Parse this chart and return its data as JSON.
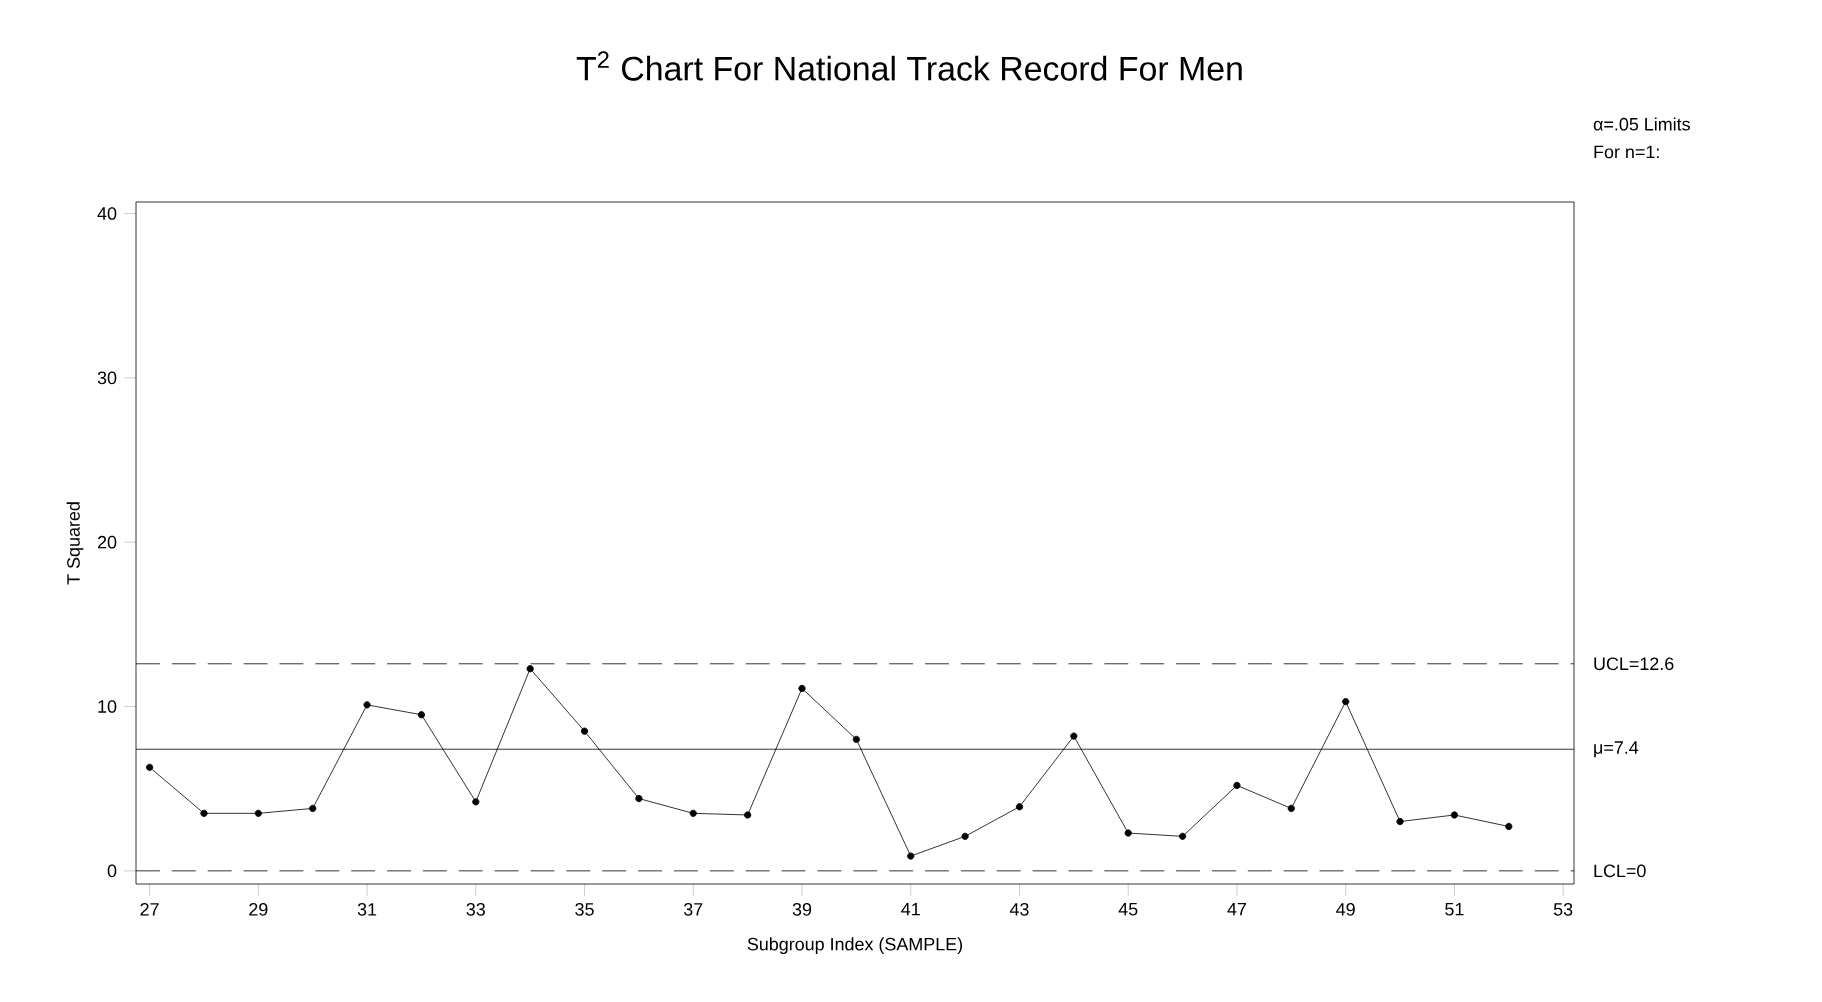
{
  "chart_data": {
    "type": "line",
    "title": "T$^{2}$ Chart For National Track Record For Men",
    "xlabel": "Subgroup Index (SAMPLE)",
    "ylabel": "T Squared",
    "x": [
      27,
      28,
      29,
      30,
      31,
      32,
      33,
      34,
      35,
      36,
      37,
      38,
      39,
      40,
      41,
      42,
      43,
      44,
      45,
      46,
      47,
      48,
      49,
      50,
      51,
      52
    ],
    "series": [
      {
        "color": "#000000",
        "values": [
          6.3,
          3.5,
          3.5,
          3.8,
          10.1,
          9.5,
          4.2,
          12.3,
          8.5,
          4.4,
          3.5,
          3.4,
          11.1,
          8.0,
          0.9,
          2.1,
          3.9,
          8.2,
          2.3,
          2.1,
          5.2,
          3.8,
          10.3,
          3.0,
          3.4,
          2.7
        ]
      }
    ],
    "xlim": [
      26.75,
      53.2
    ],
    "ylim": [
      -0.8,
      40.7
    ],
    "xticks": [
      27,
      29,
      31,
      33,
      35,
      37,
      39,
      41,
      43,
      45,
      47,
      49,
      51,
      53
    ],
    "yticks": [
      0,
      10,
      20,
      30,
      40
    ],
    "ref_lines": [
      {
        "axis": "y",
        "value": 12.6,
        "label": "UCL=12.6",
        "line_style": "dashed"
      },
      {
        "axis": "y",
        "value": 7.4,
        "label": "μ=7.4",
        "line_style": "solid"
      },
      {
        "axis": "y",
        "value": 0,
        "label": "LCL=0",
        "line_style": "dashed"
      }
    ],
    "annotations": [
      "α=.05 Limits",
      "For n=1:"
    ],
    "marker": "circle",
    "line_style": "solid"
  }
}
